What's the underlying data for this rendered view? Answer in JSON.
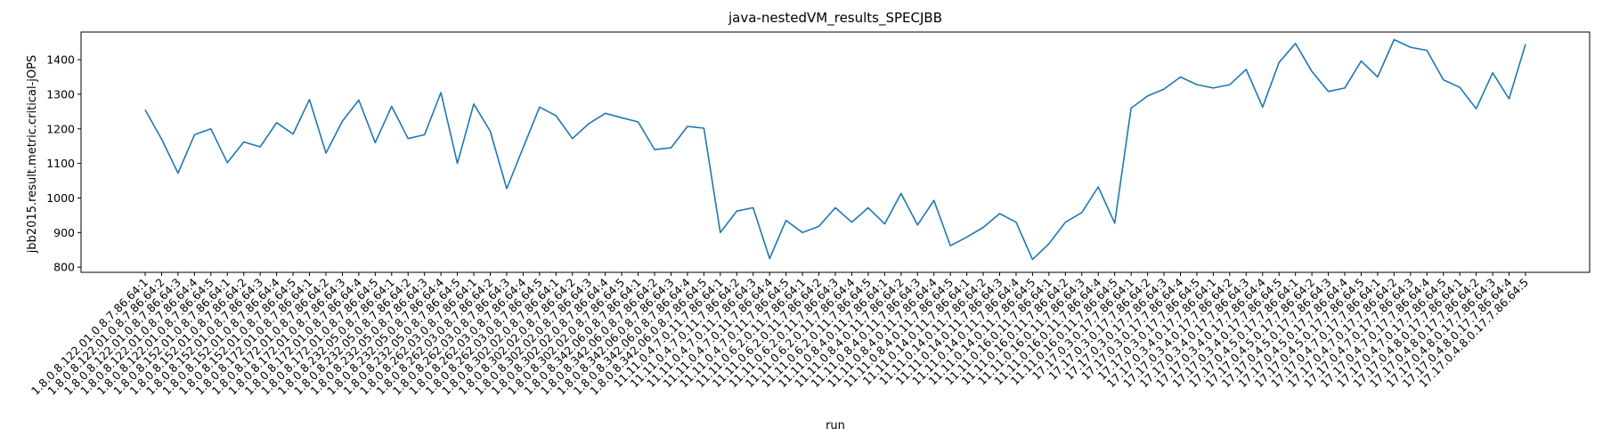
{
  "chart_data": {
    "type": "line",
    "title": "java-nestedVM_results_SPECJBB",
    "xlabel": "run",
    "ylabel": "jbb2015.result.metric.critical-jOPS",
    "ylim": [
      785,
      1480
    ],
    "yticks": [
      800,
      900,
      1000,
      1100,
      1200,
      1300,
      1400
    ],
    "grid": false,
    "series_color": "#1f77b4",
    "categories": [
      "1.8.0.8.122.01.0.8.7.86.64:1",
      "1.8.0.8.122.01.0.8.7.86.64:2",
      "1.8.0.8.122.01.0.8.7.86.64:3",
      "1.8.0.8.122.01.0.8.7.86.64:4",
      "1.8.0.8.122.01.0.8.7.86.64:5",
      "1.8.0.8.152.01.0.8.7.86.64:1",
      "1.8.0.8.152.01.0.8.7.86.64:2",
      "1.8.0.8.152.01.0.8.7.86.64:3",
      "1.8.0.8.152.01.0.8.7.86.64:4",
      "1.8.0.8.152.01.0.8.7.86.64:5",
      "1.8.0.8.172.01.0.8.7.86.64:1",
      "1.8.0.8.172.01.0.8.7.86.64:2",
      "1.8.0.8.172.01.0.8.7.86.64:3",
      "1.8.0.8.172.01.0.8.7.86.64:4",
      "1.8.0.8.172.01.0.8.7.86.64:5",
      "1.8.0.8.232.05.0.8.7.86.64:1",
      "1.8.0.8.232.05.0.8.7.86.64:2",
      "1.8.0.8.232.05.0.8.7.86.64:3",
      "1.8.0.8.232.05.0.8.7.86.64:4",
      "1.8.0.8.232.05.0.8.7.86.64:5",
      "1.8.0.8.262.03.0.8.7.86.64:1",
      "1.8.0.8.262.03.0.8.7.86.64:2",
      "1.8.0.8.262.03.0.8.7.86.64:3",
      "1.8.0.8.262.03.0.8.7.86.64:4",
      "1.8.0.8.262.03.0.8.7.86.64:5",
      "1.8.0.8.302.02.0.8.7.86.64:1",
      "1.8.0.8.302.02.0.8.7.86.64:2",
      "1.8.0.8.302.02.0.8.7.86.64:3",
      "1.8.0.8.302.02.0.8.7.86.64:4",
      "1.8.0.8.302.02.0.8.7.86.64:5",
      "1.8.0.8.342.06.0.8.7.86.64:1",
      "1.8.0.8.342.06.0.8.7.86.64:2",
      "1.8.0.8.342.06.0.8.7.86.64:3",
      "1.8.0.8.342.06.0.8.7.86.64:4",
      "1.8.0.8.342.06.0.8.7.86.64:5",
      "11.11.0.4.7.0.11.7.86.64:1",
      "11.11.0.4.7.0.11.7.86.64:2",
      "11.11.0.4.7.0.11.7.86.64:3",
      "11.11.0.4.7.0.11.7.86.64:4",
      "11.11.0.4.7.0.11.7.86.64:5",
      "11.11.0.6.2.0.11.7.86.64:1",
      "11.11.0.6.2.0.11.7.86.64:2",
      "11.11.0.6.2.0.11.7.86.64:3",
      "11.11.0.6.2.0.11.7.86.64:4",
      "11.11.0.6.2.0.11.7.86.64:5",
      "11.11.0.8.4.0.11.7.86.64:1",
      "11.11.0.8.4.0.11.7.86.64:2",
      "11.11.0.8.4.0.11.7.86.64:3",
      "11.11.0.8.4.0.11.7.86.64:4",
      "11.11.0.8.4.0.11.7.86.64:5",
      "11.11.0.14.0.11.7.86.64:1",
      "11.11.0.14.0.11.7.86.64:2",
      "11.11.0.14.0.11.7.86.64:3",
      "11.11.0.14.0.11.7.86.64:4",
      "11.11.0.14.0.11.7.86.64:5",
      "11.11.0.16.0.11.7.86.64:1",
      "11.11.0.16.0.11.7.86.64:2",
      "11.11.0.16.0.11.7.86.64:3",
      "11.11.0.16.0.11.7.86.64:4",
      "11.11.0.16.0.11.7.86.64:5",
      "17.17.0.3.0.17.7.86.64:1",
      "17.17.0.3.0.17.7.86.64:2",
      "17.17.0.3.0.17.7.86.64:3",
      "17.17.0.3.0.17.7.86.64:4",
      "17.17.0.3.0.17.7.86.64:5",
      "17.17.0.3.4.0.17.7.86.64:1",
      "17.17.0.3.4.0.17.7.86.64:2",
      "17.17.0.3.4.0.17.7.86.64:3",
      "17.17.0.3.4.0.17.7.86.64:4",
      "17.17.0.3.4.0.17.7.86.64:5",
      "17.17.0.4.5.0.17.7.86.64:1",
      "17.17.0.4.5.0.17.7.86.64:2",
      "17.17.0.4.5.0.17.7.86.64:3",
      "17.17.0.4.5.0.17.7.86.64:4",
      "17.17.0.4.5.0.17.7.86.64:5",
      "17.17.0.4.7.0.17.7.86.64:1",
      "17.17.0.4.7.0.17.7.86.64:2",
      "17.17.0.4.7.0.17.7.86.64:3",
      "17.17.0.4.7.0.17.7.86.64:4",
      "17.17.0.4.7.0.17.7.86.64:5",
      "17.17.0.4.8.0.17.7.86.64:1",
      "17.17.0.4.8.0.17.7.86.64:2",
      "17.17.0.4.8.0.17.7.86.64:3",
      "17.17.0.4.8.0.17.7.86.64:4",
      "17.17.0.4.8.0.17.7.86.64:5"
    ],
    "values": [
      1255,
      1170,
      1072,
      1183,
      1200,
      1102,
      1162,
      1148,
      1218,
      1185,
      1285,
      1130,
      1222,
      1283,
      1160,
      1265,
      1172,
      1183,
      1305,
      1100,
      1272,
      1193,
      1027,
      1145,
      1263,
      1238,
      1172,
      1215,
      1245,
      1232,
      1220,
      1140,
      1145,
      1207,
      1202,
      900,
      962,
      972,
      825,
      935,
      900,
      918,
      972,
      930,
      972,
      925,
      1013,
      922,
      993,
      862,
      887,
      915,
      955,
      930,
      822,
      868,
      930,
      958,
      1032,
      927,
      1260,
      1295,
      1315,
      1350,
      1328,
      1318,
      1328,
      1372,
      1263,
      1392,
      1447,
      1366,
      1308,
      1318,
      1396,
      1350,
      1458,
      1436,
      1427,
      1342,
      1320,
      1258,
      1362,
      1287,
      1445
    ]
  }
}
